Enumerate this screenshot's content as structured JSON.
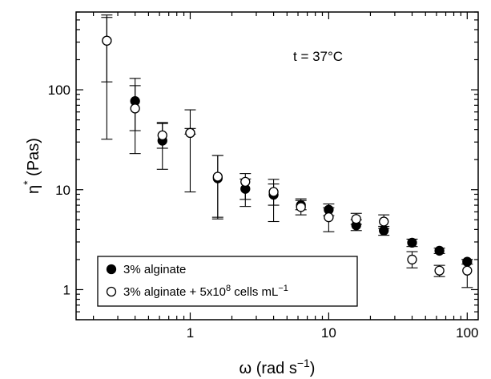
{
  "chart_data": {
    "type": "scatter",
    "x_scale": "log",
    "y_scale": "log",
    "xlim": [
      0.15,
      120
    ],
    "ylim": [
      0.5,
      600
    ],
    "xlabel_symbol": "ω",
    "xlabel_text": " (rad s",
    "xlabel_sup": "−1",
    "xlabel_close": ")",
    "ylabel_symbol": "η",
    "ylabel_sup": "*",
    "ylabel_text": " (Pas)",
    "annotation": "t = 37°C",
    "x_ticks": [
      {
        "value": 1,
        "label": "1"
      },
      {
        "value": 10,
        "label": "10"
      },
      {
        "value": 100,
        "label": "100"
      }
    ],
    "y_ticks": [
      {
        "value": 1,
        "label": "1"
      },
      {
        "value": 10,
        "label": "10"
      },
      {
        "value": 100,
        "label": "100"
      }
    ],
    "legend_position": "bottom-left",
    "series": [
      {
        "name": "3% alginate",
        "marker": "filled-circle",
        "color": "#000000",
        "points": [
          {
            "x": 0.25,
            "y": 310,
            "lo": 120,
            "hi": 530
          },
          {
            "x": 0.4,
            "y": 77,
            "lo": 39,
            "hi": 130
          },
          {
            "x": 0.63,
            "y": 31,
            "lo": 26,
            "hi": 46
          },
          {
            "x": 1.0,
            "y": 37,
            "lo": 36,
            "hi": 41
          },
          {
            "x": 1.58,
            "y": 13,
            "lo": 5.3,
            "hi": 22
          },
          {
            "x": 2.5,
            "y": 10.2,
            "lo": 8.0,
            "hi": 12.8
          },
          {
            "x": 4.0,
            "y": 8.9,
            "lo": 7.0,
            "hi": 11.4
          },
          {
            "x": 6.3,
            "y": 7.0,
            "lo": 6.3,
            "hi": 7.8
          },
          {
            "x": 10,
            "y": 6.3,
            "lo": 5.5,
            "hi": 7.2
          },
          {
            "x": 15.8,
            "y": 4.4,
            "lo": 3.9,
            "hi": 5.0
          },
          {
            "x": 25,
            "y": 3.9,
            "lo": 3.5,
            "hi": 4.3
          },
          {
            "x": 40,
            "y": 2.95,
            "lo": 2.7,
            "hi": 3.2
          },
          {
            "x": 63,
            "y": 2.45,
            "lo": 2.3,
            "hi": 2.6
          },
          {
            "x": 100,
            "y": 1.9,
            "lo": 1.8,
            "hi": 2.0
          }
        ]
      },
      {
        "name_pre": "3% alginate + 5x10",
        "name_sup1": "8",
        "name_mid": " cells mL",
        "name_sup2": "−1",
        "marker": "open-circle",
        "color": "#000000",
        "points": [
          {
            "x": 0.25,
            "y": 310,
            "lo": 32,
            "hi": 560
          },
          {
            "x": 0.4,
            "y": 65,
            "lo": 23,
            "hi": 110
          },
          {
            "x": 0.63,
            "y": 35,
            "lo": 16,
            "hi": 47
          },
          {
            "x": 1.0,
            "y": 37,
            "lo": 9.5,
            "hi": 63
          },
          {
            "x": 1.58,
            "y": 13.5,
            "lo": 5.1,
            "hi": 22
          },
          {
            "x": 2.5,
            "y": 12,
            "lo": 6.8,
            "hi": 14.5
          },
          {
            "x": 4.0,
            "y": 9.5,
            "lo": 4.8,
            "hi": 12.7
          },
          {
            "x": 6.3,
            "y": 6.7,
            "lo": 5.6,
            "hi": 8.1
          },
          {
            "x": 10,
            "y": 5.3,
            "lo": 3.8,
            "hi": 6.6
          },
          {
            "x": 15.8,
            "y": 5.1,
            "lo": 4.5,
            "hi": 5.8
          },
          {
            "x": 25,
            "y": 4.8,
            "lo": 4.1,
            "hi": 5.6
          },
          {
            "x": 40,
            "y": 2.0,
            "lo": 1.65,
            "hi": 2.4
          },
          {
            "x": 63,
            "y": 1.55,
            "lo": 1.35,
            "hi": 1.75
          },
          {
            "x": 100,
            "y": 1.55,
            "lo": 1.05,
            "hi": 2.0
          }
        ]
      }
    ]
  }
}
